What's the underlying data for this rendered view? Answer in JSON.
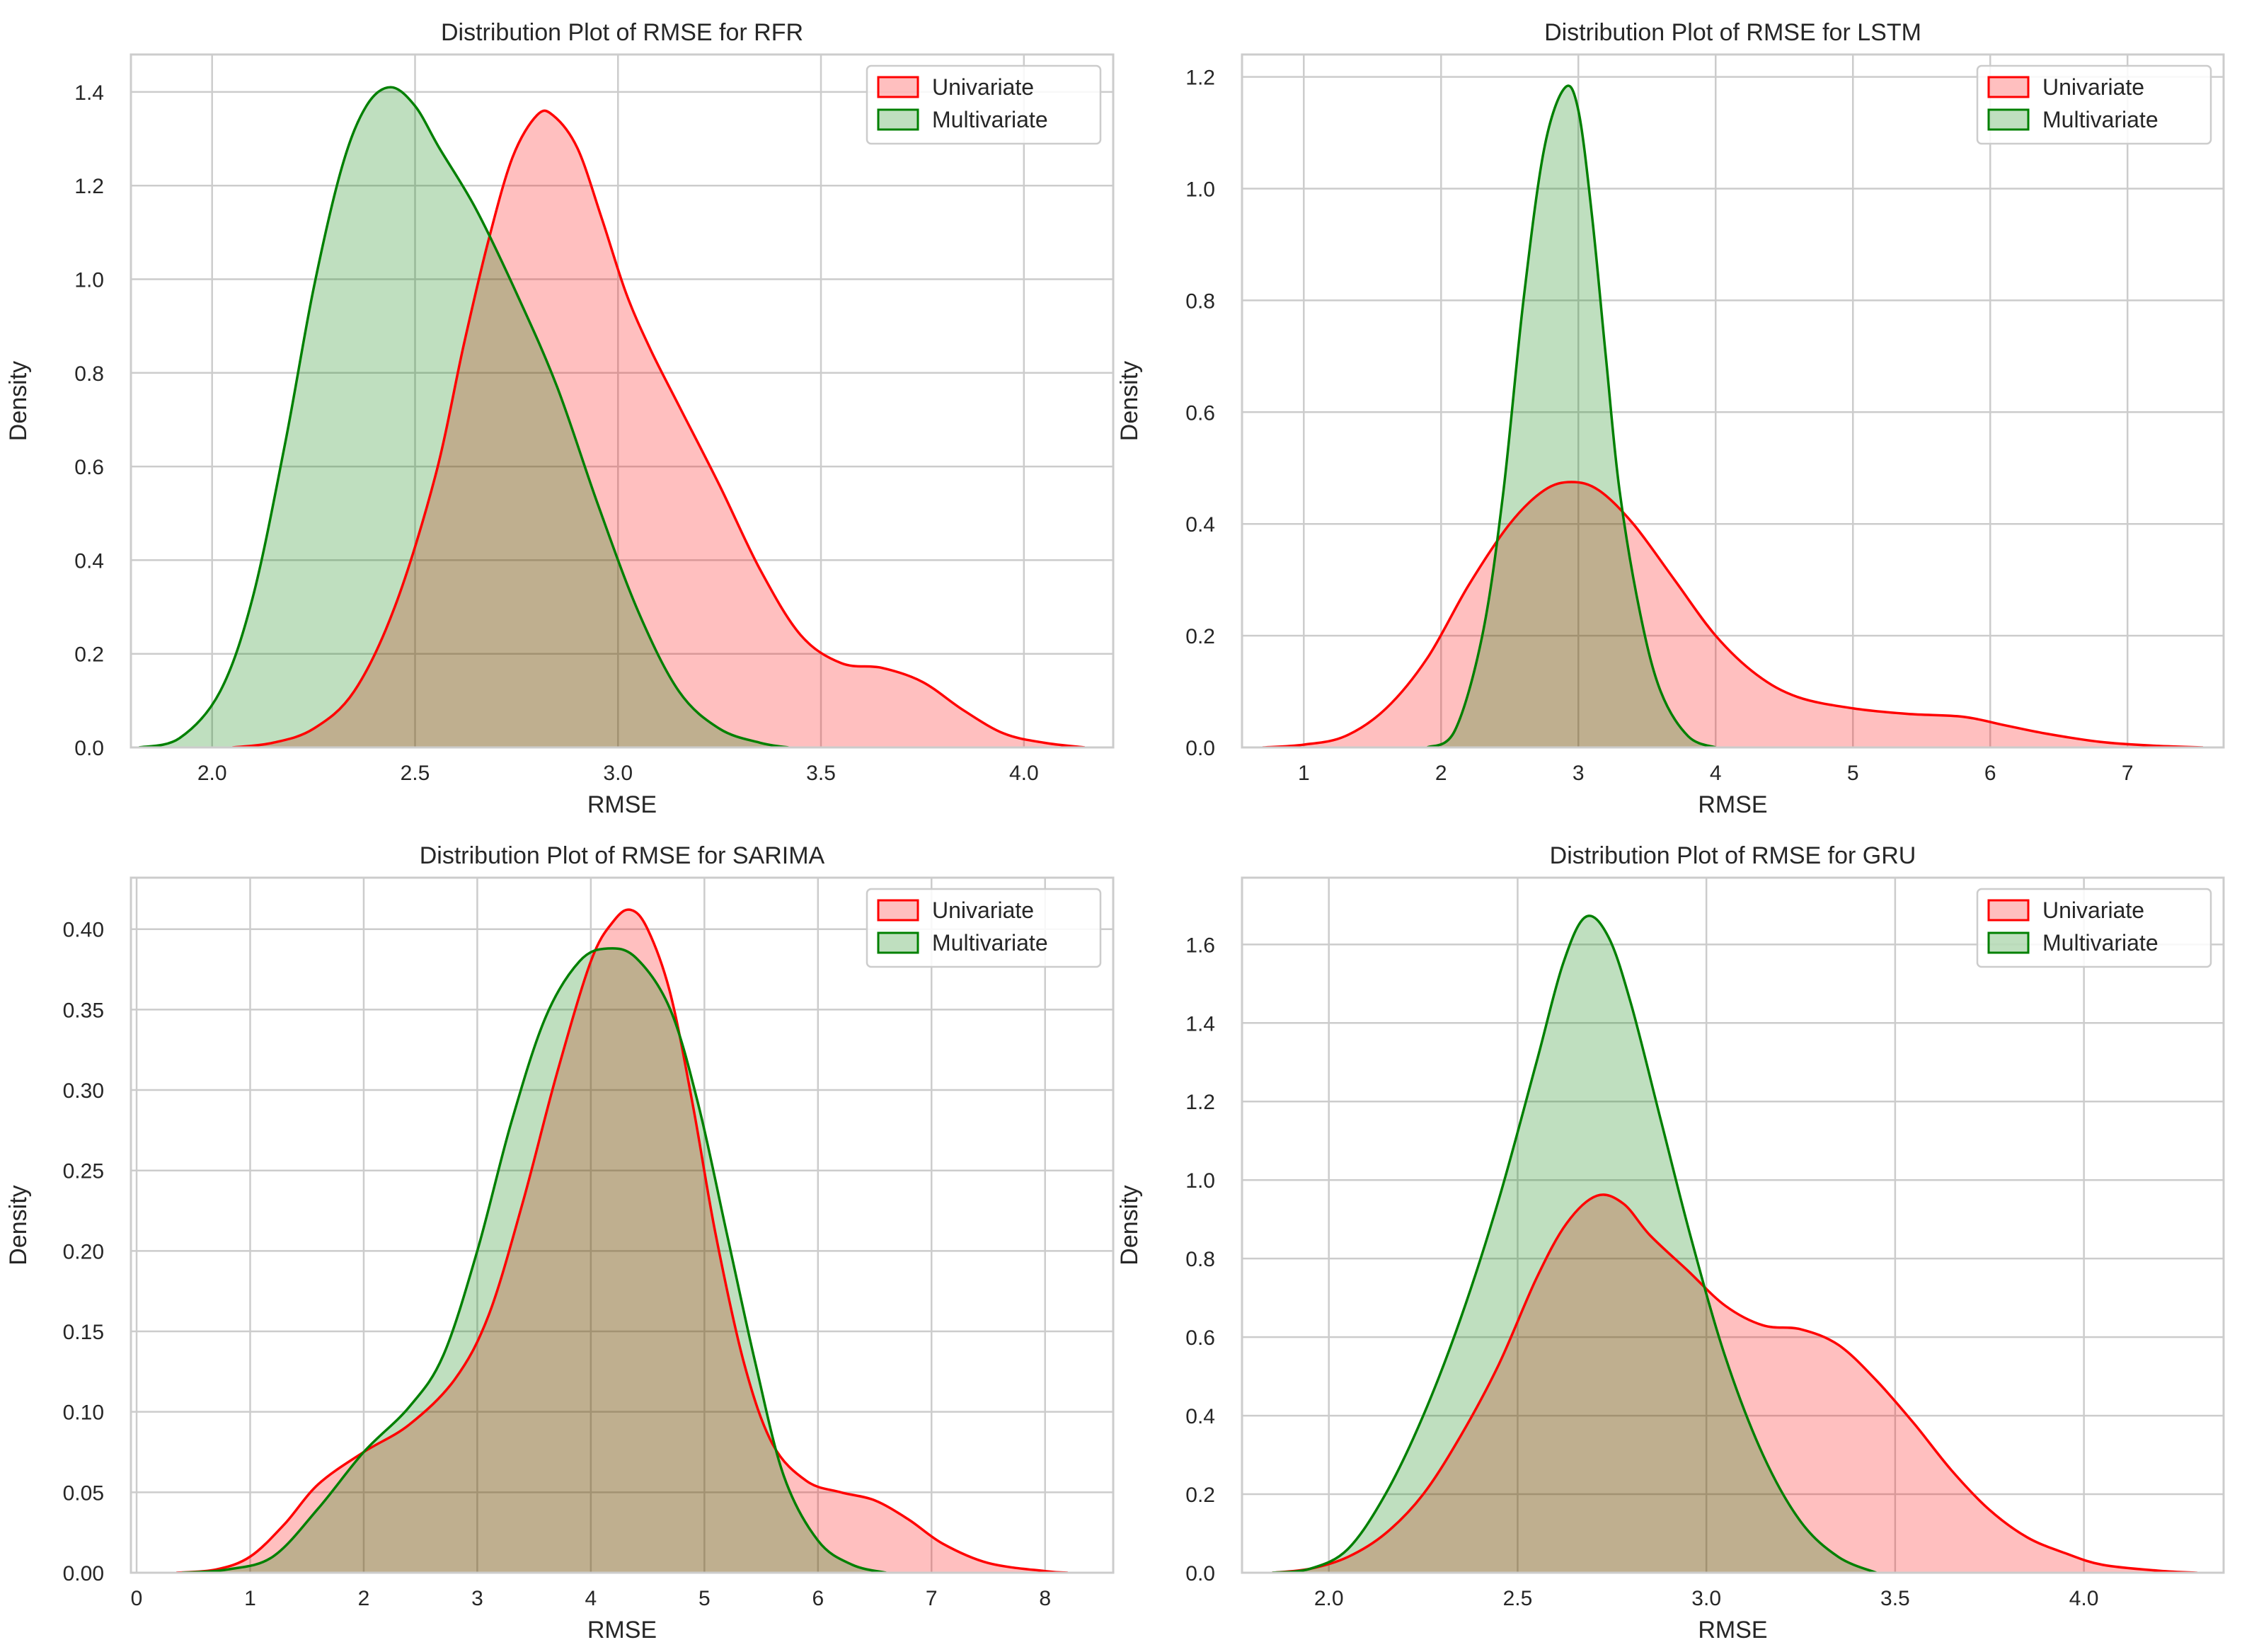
{
  "chart_data": [
    {
      "type": "area",
      "title": "Distribution Plot of RMSE for RFR",
      "xlabel": "RMSE",
      "ylabel": "Density",
      "xlim": [
        1.8,
        4.22
      ],
      "ylim": [
        0,
        1.48
      ],
      "xticks": [
        "2.0",
        "2.5",
        "3.0",
        "3.5",
        "4.0"
      ],
      "xtick_values": [
        2.0,
        2.5,
        3.0,
        3.5,
        4.0
      ],
      "yticks": [
        "0.0",
        "0.2",
        "0.4",
        "0.6",
        "0.8",
        "1.0",
        "1.2",
        "1.4"
      ],
      "ytick_values": [
        0,
        0.2,
        0.4,
        0.6,
        0.8,
        1.0,
        1.2,
        1.4
      ],
      "grid": true,
      "legend": "top-right",
      "series": [
        {
          "name": "Univariate",
          "color": "#ff0000",
          "fill": "#ffbfbf",
          "points": [
            [
              2.05,
              0.0
            ],
            [
              2.15,
              0.01
            ],
            [
              2.25,
              0.04
            ],
            [
              2.35,
              0.12
            ],
            [
              2.45,
              0.3
            ],
            [
              2.55,
              0.58
            ],
            [
              2.62,
              0.86
            ],
            [
              2.68,
              1.08
            ],
            [
              2.74,
              1.26
            ],
            [
              2.8,
              1.35
            ],
            [
              2.84,
              1.35
            ],
            [
              2.9,
              1.28
            ],
            [
              2.96,
              1.13
            ],
            [
              3.02,
              0.97
            ],
            [
              3.08,
              0.85
            ],
            [
              3.15,
              0.73
            ],
            [
              3.25,
              0.56
            ],
            [
              3.35,
              0.38
            ],
            [
              3.45,
              0.24
            ],
            [
              3.55,
              0.18
            ],
            [
              3.65,
              0.17
            ],
            [
              3.75,
              0.14
            ],
            [
              3.85,
              0.08
            ],
            [
              3.95,
              0.03
            ],
            [
              4.05,
              0.01
            ],
            [
              4.15,
              0.0
            ]
          ]
        },
        {
          "name": "Multivariate",
          "color": "#008000",
          "fill": "#bfdfbf",
          "points": [
            [
              1.82,
              0.0
            ],
            [
              1.92,
              0.02
            ],
            [
              2.02,
              0.12
            ],
            [
              2.1,
              0.32
            ],
            [
              2.18,
              0.65
            ],
            [
              2.25,
              0.98
            ],
            [
              2.32,
              1.24
            ],
            [
              2.38,
              1.37
            ],
            [
              2.44,
              1.41
            ],
            [
              2.5,
              1.37
            ],
            [
              2.56,
              1.28
            ],
            [
              2.65,
              1.15
            ],
            [
              2.75,
              0.97
            ],
            [
              2.85,
              0.77
            ],
            [
              2.95,
              0.52
            ],
            [
              3.05,
              0.29
            ],
            [
              3.15,
              0.12
            ],
            [
              3.25,
              0.04
            ],
            [
              3.35,
              0.01
            ],
            [
              3.42,
              0.0
            ]
          ]
        }
      ]
    },
    {
      "type": "area",
      "title": "Distribution Plot of RMSE for LSTM",
      "xlabel": "RMSE",
      "ylabel": "Density",
      "xlim": [
        0.55,
        7.7
      ],
      "ylim": [
        0,
        1.24
      ],
      "xticks": [
        "1",
        "2",
        "3",
        "4",
        "5",
        "6",
        "7"
      ],
      "xtick_values": [
        1,
        2,
        3,
        4,
        5,
        6,
        7
      ],
      "yticks": [
        "0.0",
        "0.2",
        "0.4",
        "0.6",
        "0.8",
        "1.0",
        "1.2"
      ],
      "ytick_values": [
        0,
        0.2,
        0.4,
        0.6,
        0.8,
        1.0,
        1.2
      ],
      "grid": true,
      "legend": "top-right",
      "series": [
        {
          "name": "Univariate",
          "color": "#ff0000",
          "fill": "#ffbfbf",
          "points": [
            [
              0.7,
              0.0
            ],
            [
              1.0,
              0.005
            ],
            [
              1.3,
              0.02
            ],
            [
              1.6,
              0.07
            ],
            [
              1.9,
              0.16
            ],
            [
              2.2,
              0.29
            ],
            [
              2.5,
              0.4
            ],
            [
              2.75,
              0.46
            ],
            [
              2.95,
              0.475
            ],
            [
              3.15,
              0.46
            ],
            [
              3.4,
              0.4
            ],
            [
              3.7,
              0.3
            ],
            [
              4.0,
              0.2
            ],
            [
              4.3,
              0.13
            ],
            [
              4.6,
              0.09
            ],
            [
              5.0,
              0.07
            ],
            [
              5.4,
              0.06
            ],
            [
              5.8,
              0.055
            ],
            [
              6.1,
              0.04
            ],
            [
              6.4,
              0.025
            ],
            [
              6.8,
              0.01
            ],
            [
              7.2,
              0.003
            ],
            [
              7.55,
              0.0
            ]
          ]
        },
        {
          "name": "Multivariate",
          "color": "#008000",
          "fill": "#bfdfbf",
          "points": [
            [
              1.9,
              0.0
            ],
            [
              2.1,
              0.03
            ],
            [
              2.3,
              0.2
            ],
            [
              2.45,
              0.45
            ],
            [
              2.6,
              0.8
            ],
            [
              2.75,
              1.07
            ],
            [
              2.9,
              1.18
            ],
            [
              3.0,
              1.14
            ],
            [
              3.1,
              0.95
            ],
            [
              3.2,
              0.7
            ],
            [
              3.3,
              0.46
            ],
            [
              3.45,
              0.24
            ],
            [
              3.6,
              0.1
            ],
            [
              3.8,
              0.02
            ],
            [
              4.0,
              0.0
            ]
          ]
        }
      ]
    },
    {
      "type": "area",
      "title": "Distribution Plot of RMSE for SARIMA",
      "xlabel": "RMSE",
      "ylabel": "Density",
      "xlim": [
        -0.05,
        8.6
      ],
      "ylim": [
        0,
        0.432
      ],
      "xticks": [
        "0",
        "1",
        "2",
        "3",
        "4",
        "5",
        "6",
        "7",
        "8"
      ],
      "xtick_values": [
        0,
        1,
        2,
        3,
        4,
        5,
        6,
        7,
        8
      ],
      "yticks": [
        "0.00",
        "0.05",
        "0.10",
        "0.15",
        "0.20",
        "0.25",
        "0.30",
        "0.35",
        "0.40"
      ],
      "ytick_values": [
        0,
        0.05,
        0.1,
        0.15,
        0.2,
        0.25,
        0.3,
        0.35,
        0.4
      ],
      "grid": true,
      "legend": "top-right",
      "series": [
        {
          "name": "Univariate",
          "color": "#ff0000",
          "fill": "#ffbfbf",
          "points": [
            [
              0.35,
              0.0
            ],
            [
              0.7,
              0.002
            ],
            [
              1.0,
              0.01
            ],
            [
              1.3,
              0.03
            ],
            [
              1.6,
              0.055
            ],
            [
              2.0,
              0.075
            ],
            [
              2.4,
              0.092
            ],
            [
              2.8,
              0.12
            ],
            [
              3.1,
              0.16
            ],
            [
              3.4,
              0.23
            ],
            [
              3.7,
              0.31
            ],
            [
              4.0,
              0.38
            ],
            [
              4.2,
              0.405
            ],
            [
              4.35,
              0.412
            ],
            [
              4.5,
              0.4
            ],
            [
              4.7,
              0.36
            ],
            [
              4.9,
              0.29
            ],
            [
              5.1,
              0.21
            ],
            [
              5.35,
              0.13
            ],
            [
              5.6,
              0.08
            ],
            [
              5.9,
              0.057
            ],
            [
              6.2,
              0.05
            ],
            [
              6.5,
              0.045
            ],
            [
              6.8,
              0.033
            ],
            [
              7.1,
              0.018
            ],
            [
              7.5,
              0.006
            ],
            [
              8.0,
              0.001
            ],
            [
              8.2,
              0.0
            ]
          ]
        },
        {
          "name": "Multivariate",
          "color": "#008000",
          "fill": "#bfdfbf",
          "points": [
            [
              0.4,
              0.0
            ],
            [
              0.8,
              0.002
            ],
            [
              1.2,
              0.01
            ],
            [
              1.6,
              0.04
            ],
            [
              2.0,
              0.075
            ],
            [
              2.4,
              0.103
            ],
            [
              2.7,
              0.135
            ],
            [
              3.0,
              0.2
            ],
            [
              3.3,
              0.28
            ],
            [
              3.6,
              0.345
            ],
            [
              3.9,
              0.38
            ],
            [
              4.15,
              0.388
            ],
            [
              4.4,
              0.382
            ],
            [
              4.7,
              0.35
            ],
            [
              4.95,
              0.29
            ],
            [
              5.2,
              0.21
            ],
            [
              5.45,
              0.13
            ],
            [
              5.7,
              0.06
            ],
            [
              6.0,
              0.02
            ],
            [
              6.3,
              0.005
            ],
            [
              6.6,
              0.0
            ]
          ]
        }
      ]
    },
    {
      "type": "area",
      "title": "Distribution Plot of RMSE for GRU",
      "xlabel": "RMSE",
      "ylabel": "Density",
      "xlim": [
        1.77,
        4.37
      ],
      "ylim": [
        0,
        1.77
      ],
      "xticks": [
        "2.0",
        "2.5",
        "3.0",
        "3.5",
        "4.0"
      ],
      "xtick_values": [
        2.0,
        2.5,
        3.0,
        3.5,
        4.0
      ],
      "yticks": [
        "0.0",
        "0.2",
        "0.4",
        "0.6",
        "0.8",
        "1.0",
        "1.2",
        "1.4",
        "1.6"
      ],
      "ytick_values": [
        0,
        0.2,
        0.4,
        0.6,
        0.8,
        1.0,
        1.2,
        1.4,
        1.6
      ],
      "grid": true,
      "legend": "top-right",
      "series": [
        {
          "name": "Univariate",
          "color": "#ff0000",
          "fill": "#ffbfbf",
          "points": [
            [
              1.85,
              0.0
            ],
            [
              1.95,
              0.01
            ],
            [
              2.05,
              0.04
            ],
            [
              2.15,
              0.1
            ],
            [
              2.25,
              0.2
            ],
            [
              2.35,
              0.35
            ],
            [
              2.45,
              0.53
            ],
            [
              2.55,
              0.75
            ],
            [
              2.63,
              0.89
            ],
            [
              2.71,
              0.96
            ],
            [
              2.78,
              0.94
            ],
            [
              2.85,
              0.86
            ],
            [
              2.95,
              0.77
            ],
            [
              3.05,
              0.68
            ],
            [
              3.15,
              0.63
            ],
            [
              3.25,
              0.62
            ],
            [
              3.35,
              0.58
            ],
            [
              3.45,
              0.49
            ],
            [
              3.55,
              0.38
            ],
            [
              3.65,
              0.26
            ],
            [
              3.75,
              0.16
            ],
            [
              3.85,
              0.09
            ],
            [
              3.95,
              0.05
            ],
            [
              4.05,
              0.02
            ],
            [
              4.2,
              0.005
            ],
            [
              4.3,
              0.0
            ]
          ]
        },
        {
          "name": "Multivariate",
          "color": "#008000",
          "fill": "#bfdfbf",
          "points": [
            [
              1.85,
              0.0
            ],
            [
              1.95,
              0.01
            ],
            [
              2.05,
              0.06
            ],
            [
              2.15,
              0.2
            ],
            [
              2.25,
              0.4
            ],
            [
              2.35,
              0.65
            ],
            [
              2.45,
              0.95
            ],
            [
              2.55,
              1.3
            ],
            [
              2.62,
              1.55
            ],
            [
              2.68,
              1.67
            ],
            [
              2.74,
              1.62
            ],
            [
              2.8,
              1.45
            ],
            [
              2.88,
              1.15
            ],
            [
              2.96,
              0.85
            ],
            [
              3.05,
              0.55
            ],
            [
              3.15,
              0.3
            ],
            [
              3.25,
              0.13
            ],
            [
              3.35,
              0.04
            ],
            [
              3.45,
              0.0
            ]
          ]
        }
      ]
    }
  ]
}
